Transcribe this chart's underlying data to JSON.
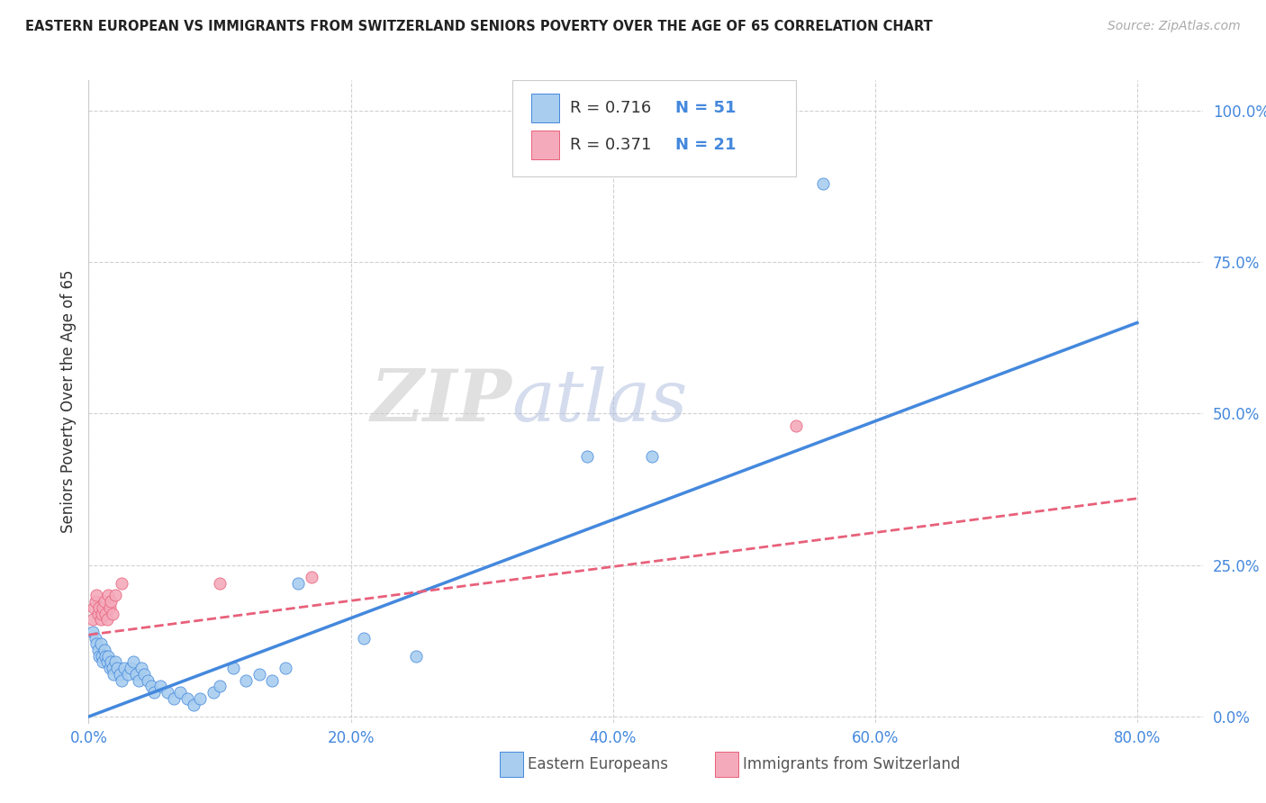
{
  "title": "EASTERN EUROPEAN VS IMMIGRANTS FROM SWITZERLAND SENIORS POVERTY OVER THE AGE OF 65 CORRELATION CHART",
  "source": "Source: ZipAtlas.com",
  "ylabel": "Seniors Poverty Over the Age of 65",
  "xlabel_ticks": [
    "0.0%",
    "20.0%",
    "40.0%",
    "60.0%",
    "80.0%"
  ],
  "ylabel_ticks": [
    "0.0%",
    "25.0%",
    "50.0%",
    "75.0%",
    "100.0%"
  ],
  "xlim": [
    0.0,
    0.85
  ],
  "ylim": [
    -0.01,
    1.05
  ],
  "watermark_zip": "ZIP",
  "watermark_atlas": "atlas",
  "legend_blue_r": "R = 0.716",
  "legend_blue_n": "N = 51",
  "legend_pink_r": "R = 0.371",
  "legend_pink_n": "N = 21",
  "legend_label_blue": "Eastern Europeans",
  "legend_label_pink": "Immigrants from Switzerland",
  "blue_color": "#A8CDEF",
  "pink_color": "#F4AABB",
  "line_blue_color": "#4488DD",
  "line_pink_color": "#E8607A",
  "tick_color": "#4488DD",
  "blue_scatter": [
    [
      0.003,
      0.14
    ],
    [
      0.005,
      0.13
    ],
    [
      0.006,
      0.12
    ],
    [
      0.007,
      0.11
    ],
    [
      0.008,
      0.1
    ],
    [
      0.009,
      0.12
    ],
    [
      0.01,
      0.1
    ],
    [
      0.011,
      0.09
    ],
    [
      0.012,
      0.11
    ],
    [
      0.013,
      0.1
    ],
    [
      0.014,
      0.09
    ],
    [
      0.015,
      0.1
    ],
    [
      0.016,
      0.08
    ],
    [
      0.017,
      0.09
    ],
    [
      0.018,
      0.08
    ],
    [
      0.019,
      0.07
    ],
    [
      0.02,
      0.09
    ],
    [
      0.022,
      0.08
    ],
    [
      0.024,
      0.07
    ],
    [
      0.025,
      0.06
    ],
    [
      0.027,
      0.08
    ],
    [
      0.03,
      0.07
    ],
    [
      0.032,
      0.08
    ],
    [
      0.034,
      0.09
    ],
    [
      0.036,
      0.07
    ],
    [
      0.038,
      0.06
    ],
    [
      0.04,
      0.08
    ],
    [
      0.042,
      0.07
    ],
    [
      0.045,
      0.06
    ],
    [
      0.048,
      0.05
    ],
    [
      0.05,
      0.04
    ],
    [
      0.055,
      0.05
    ],
    [
      0.06,
      0.04
    ],
    [
      0.065,
      0.03
    ],
    [
      0.07,
      0.04
    ],
    [
      0.075,
      0.03
    ],
    [
      0.08,
      0.02
    ],
    [
      0.085,
      0.03
    ],
    [
      0.095,
      0.04
    ],
    [
      0.1,
      0.05
    ],
    [
      0.11,
      0.08
    ],
    [
      0.12,
      0.06
    ],
    [
      0.13,
      0.07
    ],
    [
      0.14,
      0.06
    ],
    [
      0.15,
      0.08
    ],
    [
      0.16,
      0.22
    ],
    [
      0.21,
      0.13
    ],
    [
      0.25,
      0.1
    ],
    [
      0.38,
      0.43
    ],
    [
      0.43,
      0.43
    ],
    [
      0.56,
      0.88
    ]
  ],
  "pink_scatter": [
    [
      0.003,
      0.16
    ],
    [
      0.004,
      0.18
    ],
    [
      0.005,
      0.19
    ],
    [
      0.006,
      0.2
    ],
    [
      0.007,
      0.17
    ],
    [
      0.008,
      0.18
    ],
    [
      0.009,
      0.16
    ],
    [
      0.01,
      0.17
    ],
    [
      0.011,
      0.18
    ],
    [
      0.012,
      0.19
    ],
    [
      0.013,
      0.17
    ],
    [
      0.014,
      0.16
    ],
    [
      0.015,
      0.2
    ],
    [
      0.016,
      0.18
    ],
    [
      0.017,
      0.19
    ],
    [
      0.018,
      0.17
    ],
    [
      0.02,
      0.2
    ],
    [
      0.025,
      0.22
    ],
    [
      0.1,
      0.22
    ],
    [
      0.17,
      0.23
    ],
    [
      0.54,
      0.48
    ]
  ],
  "blue_line": [
    [
      0.0,
      0.0
    ],
    [
      0.8,
      0.65
    ]
  ],
  "pink_line": [
    [
      0.0,
      0.135
    ],
    [
      0.8,
      0.36
    ]
  ]
}
